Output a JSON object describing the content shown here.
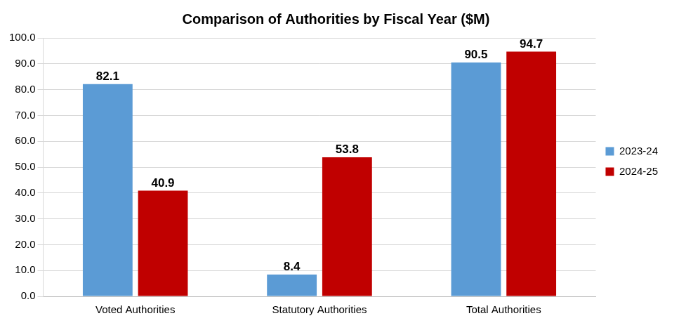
{
  "chart_data": {
    "type": "bar",
    "title": "Comparison of Authorities by Fiscal Year ($M)",
    "categories": [
      "Voted Authorities",
      "Statutory Authorities",
      "Total Authorities"
    ],
    "series": [
      {
        "name": "2023-24",
        "color": "#5b9bd5",
        "values": [
          82.1,
          8.4,
          90.5
        ]
      },
      {
        "name": "2024-25",
        "color": "#c00000",
        "values": [
          40.9,
          53.8,
          94.7
        ]
      }
    ],
    "ylim": [
      0,
      100
    ],
    "yticks": [
      {
        "value": 0,
        "label": "0.0"
      },
      {
        "value": 10,
        "label": "10.0"
      },
      {
        "value": 20,
        "label": "20.0"
      },
      {
        "value": 30,
        "label": "30.0"
      },
      {
        "value": 40,
        "label": "40.0"
      },
      {
        "value": 50,
        "label": "50.0"
      },
      {
        "value": 60,
        "label": "60.0"
      },
      {
        "value": 70,
        "label": "70.0"
      },
      {
        "value": 80,
        "label": "80.0"
      },
      {
        "value": 90,
        "label": "90.0"
      },
      {
        "value": 100,
        "label": "100.0"
      }
    ],
    "grid": true,
    "legend": "right",
    "data_labels": true
  }
}
